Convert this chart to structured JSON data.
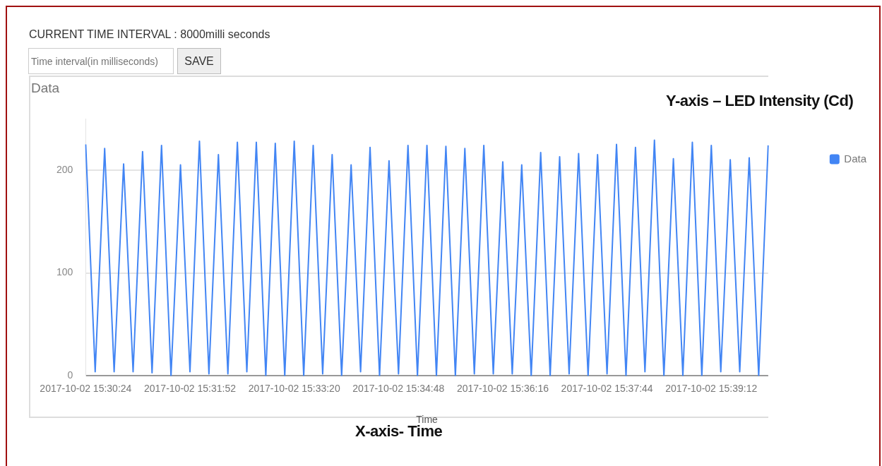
{
  "chart_data": {
    "type": "line",
    "title": "Data",
    "xlabel": "Time",
    "annotations": [
      "CURRENT TIME INTERVAL : 8000milli seconds",
      "Time interval(in milliseconds)",
      "SAVE",
      "Y-axis – LED Intensity (Cd)",
      "X-axis- Time"
    ],
    "categories": [
      "2017-10-02 15:30:24",
      null,
      null,
      null,
      null,
      null,
      null,
      null,
      null,
      null,
      null,
      "2017-10-02 15:31:52",
      null,
      null,
      null,
      null,
      null,
      null,
      null,
      null,
      null,
      null,
      "2017-10-02 15:33:20",
      null,
      null,
      null,
      null,
      null,
      null,
      null,
      null,
      null,
      null,
      "2017-10-02 15:34:48",
      null,
      null,
      null,
      null,
      null,
      null,
      null,
      null,
      null,
      null,
      "2017-10-02 15:36:16",
      null,
      null,
      null,
      null,
      null,
      null,
      null,
      null,
      null,
      null,
      "2017-10-02 15:37:44",
      null,
      null,
      null,
      null,
      null,
      null,
      null,
      null,
      null,
      null,
      "2017-10-02 15:39:12",
      null,
      null,
      null,
      null,
      null,
      null
    ],
    "series": [
      {
        "name": "Data",
        "color": "#4285f4",
        "values": [
          225,
          4,
          221,
          4,
          206,
          4,
          218,
          3,
          224,
          0,
          205,
          4,
          228,
          2,
          215,
          2,
          227,
          4,
          227,
          0,
          226,
          0,
          228,
          0,
          224,
          2,
          215,
          0,
          205,
          4,
          222,
          0,
          209,
          2,
          224,
          0,
          224,
          0,
          223,
          0,
          221,
          2,
          224,
          2,
          208,
          2,
          205,
          0,
          217,
          0,
          213,
          2,
          216,
          0,
          215,
          2,
          225,
          0,
          222,
          4,
          229,
          0,
          211,
          0,
          227,
          0,
          224,
          4,
          210,
          4,
          212,
          0,
          224
        ]
      }
    ],
    "ylim": [
      0,
      250
    ],
    "yticks": [
      0,
      100,
      200
    ],
    "grid": "y",
    "legend": "right",
    "line_style": "solid"
  }
}
